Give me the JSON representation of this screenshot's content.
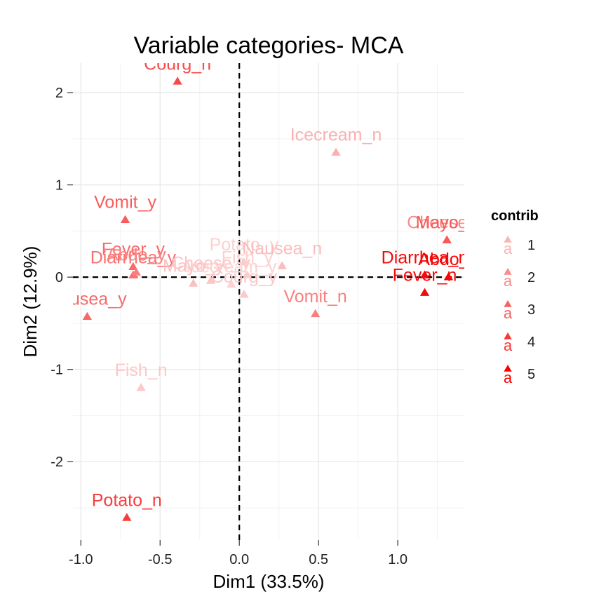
{
  "chart_data": {
    "type": "scatter",
    "title": "Variable categories- MCA",
    "xlabel": "Dim1 (33.5%)",
    "ylabel": "Dim2 (12.9%)",
    "xlim": [
      -1.05,
      1.42
    ],
    "ylim": [
      -2.85,
      2.32
    ],
    "xticks": [
      -1.0,
      -0.5,
      0.0,
      0.5,
      1.0
    ],
    "xtick_labels": [
      "-1.0",
      "-0.5",
      "0.0",
      "0.5",
      "1.0"
    ],
    "yticks": [
      -2,
      -1,
      0,
      1,
      2
    ],
    "ytick_labels": [
      "-2",
      "-1",
      "0",
      "1",
      "2"
    ],
    "grid": true,
    "reference_lines": {
      "x": 0,
      "y": 0,
      "style": "dashed"
    },
    "legend": {
      "title": "contrib",
      "placement": "right",
      "entries": [
        {
          "label": "1",
          "color": "#fbb4b4"
        },
        {
          "label": "2",
          "color": "#fa8c8c"
        },
        {
          "label": "3",
          "color": "#f86262"
        },
        {
          "label": "4",
          "color": "#f93636"
        },
        {
          "label": "5",
          "color": "#ff0000"
        }
      ]
    },
    "points": [
      {
        "label": "Courg_n",
        "x": -0.39,
        "y": 2.12,
        "contrib": 3,
        "color": "#f84a4a"
      },
      {
        "label": "Icecream_n",
        "x": 0.61,
        "y": 1.35,
        "contrib": 1,
        "color": "#fbb0b0"
      },
      {
        "label": "Vomit_y",
        "x": -0.72,
        "y": 0.62,
        "contrib": 3,
        "color": "#f85c5c"
      },
      {
        "label": "Cheese_n",
        "x": 1.31,
        "y": 0.4,
        "contrib": 2,
        "color": "#fa8a8a"
      },
      {
        "label": "Mayo_n",
        "x": 1.31,
        "y": 0.4,
        "contrib": 3,
        "color": "#f75a5a"
      },
      {
        "label": "Fever_y",
        "x": -0.67,
        "y": 0.11,
        "contrib": 3,
        "color": "#f86a6a"
      },
      {
        "label": "Diarrhea_y",
        "x": -0.67,
        "y": 0.02,
        "contrib": 3,
        "color": "#f87070"
      },
      {
        "label": "Abdo_y",
        "x": -0.65,
        "y": 0.05,
        "contrib": 2,
        "color": "#f98080"
      },
      {
        "label": "Potato_y",
        "x": 0.03,
        "y": 0.16,
        "contrib": 1,
        "color": "#fcd0d0"
      },
      {
        "label": "Fish_y",
        "x": 0.05,
        "y": 0.02,
        "contrib": 1,
        "color": "#fcd0d0"
      },
      {
        "label": "Nausea_n",
        "x": 0.27,
        "y": 0.12,
        "contrib": 1,
        "color": "#fbbcbc"
      },
      {
        "label": "Mayo_y",
        "x": -0.29,
        "y": -0.07,
        "contrib": 1,
        "color": "#fbc0c0"
      },
      {
        "label": "Cheese_y",
        "x": -0.18,
        "y": -0.04,
        "contrib": 1,
        "color": "#fcc6c6"
      },
      {
        "label": "Icecream_y",
        "x": -0.05,
        "y": -0.08,
        "contrib": 1,
        "color": "#fcd2d2"
      },
      {
        "label": "Courg_y",
        "x": 0.03,
        "y": -0.19,
        "contrib": 1,
        "color": "#fcc8c8"
      },
      {
        "label": "Vomit_n",
        "x": 0.48,
        "y": -0.4,
        "contrib": 2,
        "color": "#f98080"
      },
      {
        "label": "Diarrhea_n",
        "x": 1.17,
        "y": 0.02,
        "contrib": 5,
        "color": "#f60a0a"
      },
      {
        "label": "Abdo_n",
        "x": 1.32,
        "y": 0.0,
        "contrib": 5,
        "color": "#f50505"
      },
      {
        "label": "Fever_n",
        "x": 1.17,
        "y": -0.17,
        "contrib": 5,
        "color": "#f50a0a"
      },
      {
        "label": "Nausea_y",
        "x": -0.96,
        "y": -0.43,
        "contrib": 3,
        "color": "#f86868"
      },
      {
        "label": "Fish_n",
        "x": -0.62,
        "y": -1.2,
        "contrib": 1,
        "color": "#fcc8c8"
      },
      {
        "label": "Potato_n",
        "x": -0.71,
        "y": -2.61,
        "contrib": 4,
        "color": "#f83c3c"
      }
    ]
  }
}
